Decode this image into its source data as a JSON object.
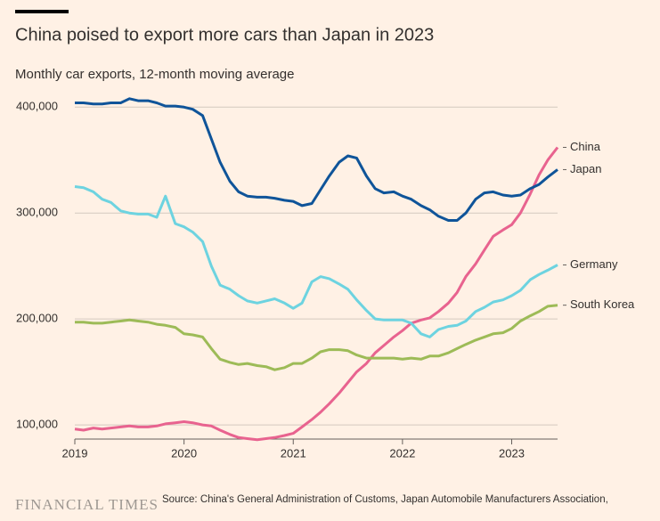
{
  "chart_data": {
    "type": "line",
    "title": "China poised to export more cars than Japan in 2023",
    "subtitle": "Monthly car exports, 12-month moving average",
    "source": "Source: China's General Administration of Customs, Japan Automobile Manufacturers Association,",
    "brand": "FINANCIAL TIMES",
    "x": [
      2019.0,
      2019.08,
      2019.17,
      2019.25,
      2019.33,
      2019.42,
      2019.5,
      2019.58,
      2019.67,
      2019.75,
      2019.83,
      2019.92,
      2020.0,
      2020.08,
      2020.17,
      2020.25,
      2020.33,
      2020.42,
      2020.5,
      2020.58,
      2020.67,
      2020.75,
      2020.83,
      2020.92,
      2021.0,
      2021.08,
      2021.17,
      2021.25,
      2021.33,
      2021.42,
      2021.5,
      2021.58,
      2021.67,
      2021.75,
      2021.83,
      2021.92,
      2022.0,
      2022.08,
      2022.17,
      2022.25,
      2022.33,
      2022.42,
      2022.5,
      2022.58,
      2022.67,
      2022.75,
      2022.83,
      2022.92,
      2023.0,
      2023.08,
      2023.17,
      2023.25,
      2023.33,
      2023.42
    ],
    "xlim": [
      2019,
      2023.42
    ],
    "xticks": [
      2019,
      2020,
      2021,
      2022,
      2023
    ],
    "ylim": [
      86600,
      412000
    ],
    "yticks": [
      {
        "value": 100000,
        "label": "100,000"
      },
      {
        "value": 200000,
        "label": "200,000"
      },
      {
        "value": 300000,
        "label": "300,000"
      },
      {
        "value": 400000,
        "label": "400,000"
      }
    ],
    "grid": true,
    "series": [
      {
        "name": "China",
        "color": "#e8638f",
        "values": [
          96000,
          95000,
          97000,
          96000,
          97000,
          98000,
          99000,
          98000,
          98000,
          99000,
          101000,
          102000,
          103000,
          102000,
          100000,
          99000,
          95000,
          91000,
          88000,
          87000,
          86000,
          87000,
          88000,
          90000,
          92000,
          98000,
          105000,
          112000,
          120000,
          130000,
          140000,
          150000,
          158000,
          168000,
          175000,
          183000,
          189000,
          196000,
          199000,
          201000,
          207000,
          215000,
          225000,
          240000,
          252000,
          265000,
          278000,
          284000,
          289000,
          300000,
          318000,
          336000,
          350000,
          362000
        ]
      },
      {
        "name": "Japan",
        "color": "#0f5499",
        "values": [
          404000,
          404000,
          403000,
          403000,
          404000,
          404000,
          408000,
          406000,
          406000,
          404000,
          401000,
          401000,
          400000,
          398000,
          392000,
          370000,
          348000,
          330000,
          320000,
          316000,
          315000,
          315000,
          314000,
          312000,
          311000,
          307000,
          309000,
          322000,
          335000,
          348000,
          354000,
          352000,
          335000,
          323000,
          319000,
          320000,
          316000,
          313000,
          307000,
          303000,
          297000,
          293000,
          293000,
          300000,
          313000,
          319000,
          320000,
          317000,
          316000,
          317000,
          323000,
          327000,
          334000,
          341000
        ]
      },
      {
        "name": "Germany",
        "color": "#6dd3e0",
        "values": [
          325000,
          324000,
          320000,
          313000,
          310000,
          302000,
          300000,
          299000,
          299000,
          296000,
          316000,
          290000,
          287000,
          282000,
          273000,
          250000,
          232000,
          228000,
          222000,
          217000,
          215000,
          217000,
          219000,
          215000,
          210000,
          215000,
          235000,
          240000,
          238000,
          233000,
          228000,
          218000,
          208000,
          200000,
          199000,
          199000,
          199000,
          196000,
          186000,
          183000,
          190000,
          193000,
          194000,
          198000,
          207000,
          211000,
          216000,
          218000,
          222000,
          227000,
          237000,
          242000,
          246000,
          251000
        ]
      },
      {
        "name": "South Korea",
        "color": "#9dbb57",
        "values": [
          197000,
          197000,
          196000,
          196000,
          197000,
          198000,
          199000,
          198000,
          197000,
          195000,
          194000,
          192000,
          186000,
          185000,
          183000,
          172000,
          162000,
          159000,
          157000,
          158000,
          156000,
          155000,
          152000,
          154000,
          158000,
          158000,
          163000,
          169000,
          171000,
          171000,
          170000,
          166000,
          163000,
          163000,
          163000,
          163000,
          162000,
          163000,
          162000,
          165000,
          165000,
          168000,
          172000,
          176000,
          180000,
          183000,
          186000,
          187000,
          191000,
          198000,
          203000,
          207000,
          212000,
          213000
        ]
      }
    ]
  }
}
